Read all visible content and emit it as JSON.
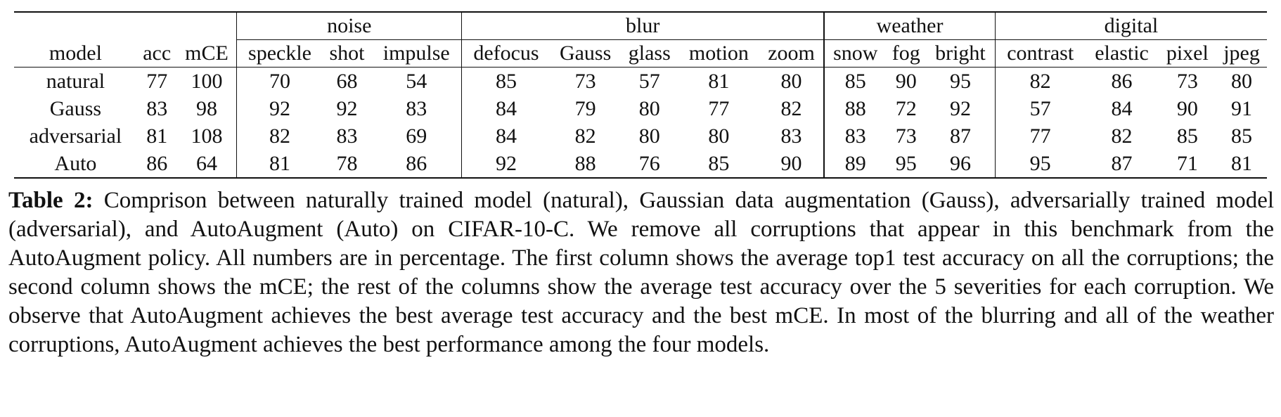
{
  "table": {
    "groups": {
      "noise": "noise",
      "blur": "blur",
      "weather": "weather",
      "digital": "digital"
    },
    "headers": [
      "model",
      "acc",
      "mCE",
      "speckle",
      "shot",
      "impulse",
      "defocus",
      "Gauss",
      "glass",
      "motion",
      "zoom",
      "snow",
      "fog",
      "bright",
      "contrast",
      "elastic",
      "pixel",
      "jpeg"
    ],
    "rows": [
      {
        "cells": [
          "natural",
          "77",
          "100",
          "70",
          "68",
          "54",
          "85",
          "73",
          "57",
          "81",
          "80",
          "85",
          "90",
          "95",
          "82",
          "86",
          "73",
          "80"
        ],
        "bold": []
      },
      {
        "cells": [
          "Gauss",
          "83",
          "98",
          "92",
          "92",
          "83",
          "84",
          "79",
          "80",
          "77",
          "82",
          "88",
          "72",
          "92",
          "57",
          "84",
          "90",
          "91"
        ],
        "bold": [
          3,
          4,
          8,
          16,
          17
        ]
      },
      {
        "cells": [
          "adversarial",
          "81",
          "108",
          "82",
          "83",
          "69",
          "84",
          "82",
          "80",
          "80",
          "83",
          "83",
          "73",
          "87",
          "77",
          "82",
          "85",
          "85"
        ],
        "bold": [
          8
        ]
      },
      {
        "cells": [
          "Auto",
          "86",
          "64",
          "81",
          "78",
          "86",
          "92",
          "88",
          "76",
          "85",
          "90",
          "89",
          "95",
          "96",
          "95",
          "87",
          "71",
          "81"
        ],
        "bold": [
          1,
          2,
          5,
          6,
          7,
          9,
          10,
          11,
          12,
          13,
          14,
          15
        ]
      }
    ]
  },
  "caption": {
    "label": "Table 2:",
    "text": " Comprison between naturally trained model (natural), Gaussian data augmentation (Gauss), adversarially trained model (adversarial), and AutoAugment (Auto) on CIFAR-10-C. We remove all corruptions that appear in this benchmark from the AutoAugment policy. All numbers are in percentage. The first column shows the average top1 test accuracy on all the corruptions; the second column shows the mCE; the rest of the columns show the average test accuracy over the 5 severities for each corruption. We observe that AutoAugment achieves the best average test accuracy and the best mCE. In most of the blurring and all of the weather corruptions, AutoAugment achieves the best performance among the four models."
  }
}
